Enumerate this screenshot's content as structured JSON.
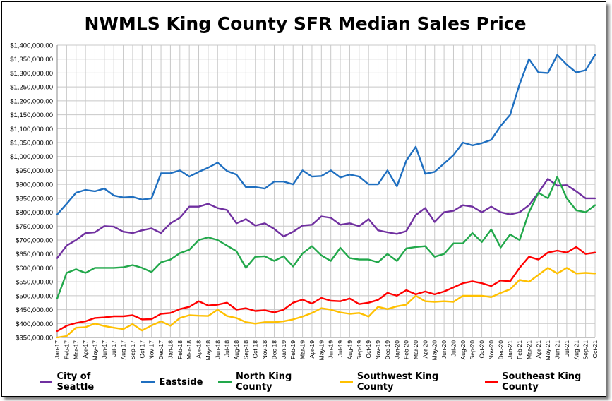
{
  "chart_data": {
    "type": "line",
    "title": "NWMLS King County SFR Median Sales Price",
    "xlabel": "",
    "ylabel": "",
    "ylim": [
      350000,
      1400000
    ],
    "ytick_step": 50000,
    "y_tick_labels": [
      "$350,000.00",
      "$400,000.00",
      "$450,000.00",
      "$500,000.00",
      "$550,000.00",
      "$600,000.00",
      "$650,000.00",
      "$700,000.00",
      "$750,000.00",
      "$800,000.00",
      "$850,000.00",
      "$900,000.00",
      "$950,000.00",
      "$1,000,000.00",
      "$1,050,000.00",
      "$1,100,000.00",
      "$1,150,000.00",
      "$1,200,000.00",
      "$1,250,000.00",
      "$1,300,000.00",
      "$1,350,000.00",
      "$1,400,000.00"
    ],
    "grid": true,
    "legend_position": "bottom",
    "categories": [
      "Jan-17",
      "Feb-17",
      "Mar-17",
      "Apr-17",
      "May-17",
      "Jun-17",
      "Jul-17",
      "Aug-17",
      "Sep-17",
      "Oct-17",
      "Nov-17",
      "Dec-17",
      "Jan-18",
      "Feb-18",
      "Mar-18",
      "Apr-18",
      "May-18",
      "Jun-18",
      "Jul-18",
      "Aug-18",
      "Sep-18",
      "Oct-18",
      "Nov-18",
      "Dec-18",
      "Jan-19",
      "Feb-19",
      "Mar-19",
      "Apr-19",
      "May-19",
      "Jun-19",
      "Jul-19",
      "Aug-19",
      "Sep-19",
      "Oct-19",
      "Nov-19",
      "Dec-19",
      "Jan-20",
      "Feb-20",
      "Mar-20",
      "Apr-20",
      "May-20",
      "Jun-20",
      "Jul-20",
      "Aug-20",
      "Sep-20",
      "Oct-20",
      "Nov-20",
      "Dec-20",
      "Jan-21",
      "Feb-21",
      "Mar-21",
      "Apr-21",
      "May-21",
      "Jun-21",
      "Jul-21",
      "Aug-21",
      "Sep-21",
      "Oct-21"
    ],
    "series": [
      {
        "name": "City of Seattle",
        "color": "#7030A0",
        "values": [
          635000,
          680000,
          700000,
          725000,
          728000,
          750000,
          748000,
          730000,
          725000,
          735000,
          742000,
          725000,
          760000,
          780000,
          820000,
          820000,
          830000,
          815000,
          808000,
          760000,
          775000,
          752000,
          760000,
          740000,
          713000,
          730000,
          752000,
          755000,
          785000,
          780000,
          755000,
          760000,
          750000,
          775000,
          735000,
          728000,
          722000,
          732000,
          790000,
          815000,
          765000,
          800000,
          805000,
          825000,
          820000,
          800000,
          820000,
          800000,
          792000,
          800000,
          825000,
          870000,
          920000,
          895000,
          897000,
          875000,
          850000,
          850000
        ]
      },
      {
        "name": "Eastside",
        "color": "#1F6FC0",
        "values": [
          792000,
          830000,
          870000,
          880000,
          875000,
          885000,
          860000,
          853000,
          855000,
          845000,
          850000,
          940000,
          940000,
          950000,
          928000,
          945000,
          960000,
          978000,
          948000,
          935000,
          890000,
          890000,
          885000,
          910000,
          910000,
          900000,
          950000,
          928000,
          930000,
          950000,
          925000,
          935000,
          928000,
          900000,
          900000,
          950000,
          893000,
          985000,
          1035000,
          938000,
          945000,
          975000,
          1005000,
          1050000,
          1040000,
          1048000,
          1060000,
          1110000,
          1150000,
          1260000,
          1350000,
          1302000,
          1300000,
          1365000,
          1330000,
          1302000,
          1310000,
          1365000
        ]
      },
      {
        "name": "North King County",
        "color": "#22A84B",
        "values": [
          490000,
          582000,
          595000,
          582000,
          600000,
          600000,
          600000,
          602000,
          610000,
          600000,
          585000,
          620000,
          630000,
          653000,
          665000,
          700000,
          710000,
          700000,
          680000,
          660000,
          600000,
          640000,
          642000,
          625000,
          642000,
          605000,
          652000,
          678000,
          645000,
          625000,
          672000,
          635000,
          630000,
          630000,
          620000,
          650000,
          625000,
          670000,
          675000,
          678000,
          640000,
          650000,
          688000,
          688000,
          725000,
          693000,
          738000,
          673000,
          720000,
          700000,
          800000,
          870000,
          850000,
          927000,
          850000,
          807000,
          800000,
          825000
        ]
      },
      {
        "name": "Southwest King County",
        "color": "#FFC000",
        "values": [
          350000,
          355000,
          385000,
          387000,
          400000,
          391000,
          385000,
          380000,
          398000,
          375000,
          393000,
          408000,
          392000,
          420000,
          430000,
          428000,
          427000,
          450000,
          427000,
          420000,
          405000,
          400000,
          405000,
          405000,
          408000,
          415000,
          425000,
          438000,
          455000,
          450000,
          440000,
          435000,
          438000,
          425000,
          460000,
          452000,
          462000,
          468000,
          500000,
          480000,
          478000,
          480000,
          478000,
          500000,
          500000,
          500000,
          495000,
          510000,
          523000,
          557000,
          550000,
          575000,
          600000,
          580000,
          600000,
          580000,
          582000,
          580000
        ]
      },
      {
        "name": "Southeast King County",
        "color": "#FF0000",
        "values": [
          373000,
          392000,
          402000,
          408000,
          420000,
          422000,
          426000,
          426000,
          430000,
          415000,
          416000,
          435000,
          438000,
          452000,
          460000,
          480000,
          465000,
          468000,
          475000,
          450000,
          455000,
          445000,
          448000,
          440000,
          450000,
          475000,
          486000,
          472000,
          492000,
          482000,
          480000,
          490000,
          470000,
          475000,
          485000,
          510000,
          500000,
          520000,
          505000,
          515000,
          505000,
          515000,
          530000,
          545000,
          552000,
          545000,
          535000,
          555000,
          552000,
          600000,
          640000,
          630000,
          655000,
          662000,
          655000,
          675000,
          650000,
          655000
        ]
      }
    ]
  }
}
